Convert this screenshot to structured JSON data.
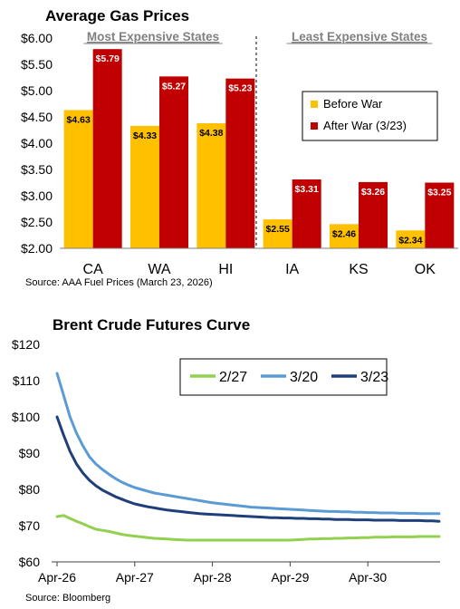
{
  "chart_data": [
    {
      "type": "bar",
      "title": "Average Gas Prices",
      "group_labels": [
        "Most Expensive States",
        "Least Expensive States"
      ],
      "categories": [
        "CA",
        "WA",
        "HI",
        "IA",
        "KS",
        "OK"
      ],
      "ylim": [
        2.0,
        6.0
      ],
      "yticks": [
        "$2.00",
        "$2.50",
        "$3.00",
        "$3.50",
        "$4.00",
        "$4.50",
        "$5.00",
        "$5.50",
        "$6.00"
      ],
      "series": [
        {
          "name": "Before War",
          "color": "#FFC000",
          "values": [
            4.63,
            4.33,
            4.38,
            2.55,
            2.46,
            2.34
          ],
          "labels": [
            "$4.63",
            "$4.33",
            "$4.38",
            "$2.55",
            "$2.46",
            "$2.34"
          ]
        },
        {
          "name": "After War (3/23)",
          "color": "#C00000",
          "values": [
            5.79,
            5.27,
            5.23,
            3.31,
            3.26,
            3.25
          ],
          "labels": [
            "$5.79",
            "$5.27",
            "$5.23",
            "$3.31",
            "$3.26",
            "$3.25"
          ]
        }
      ],
      "legend_position": "right",
      "source": "Source: AAA Fuel Prices (March 23, 2026)"
    },
    {
      "type": "line",
      "title": "Brent Crude Futures Curve",
      "ylim": [
        60,
        120
      ],
      "yticks": [
        "$60",
        "$70",
        "$80",
        "$90",
        "$100",
        "$110",
        "$120"
      ],
      "xticks": [
        "Apr-26",
        "Apr-27",
        "Apr-28",
        "Apr-29",
        "Apr-30"
      ],
      "x_months": [
        0,
        1,
        2,
        3,
        4,
        5,
        6,
        7,
        8,
        9,
        10,
        11,
        12,
        13,
        14,
        15,
        16,
        17,
        18,
        19,
        20,
        21,
        22,
        23,
        24,
        25,
        26,
        27,
        28,
        29,
        30,
        31,
        32,
        33,
        34,
        35,
        36,
        37,
        38,
        39,
        40,
        41,
        42,
        43,
        44,
        45,
        46,
        47,
        48,
        49,
        50,
        51,
        52,
        53,
        54,
        55,
        56,
        57,
        58,
        59
      ],
      "series": [
        {
          "name": "2/27",
          "color": "#92D050",
          "values": [
            72.5,
            72.8,
            72.0,
            71.2,
            70.5,
            69.7,
            69.0,
            68.7,
            68.4,
            68.0,
            67.6,
            67.3,
            67.1,
            66.9,
            66.7,
            66.5,
            66.4,
            66.3,
            66.2,
            66.1,
            66.0,
            66.0,
            66.0,
            66.0,
            66.0,
            66.0,
            66.0,
            66.0,
            66.0,
            66.0,
            66.0,
            66.0,
            66.0,
            66.0,
            66.0,
            66.0,
            66.0,
            66.1,
            66.2,
            66.3,
            66.3,
            66.4,
            66.4,
            66.5,
            66.5,
            66.6,
            66.6,
            66.7,
            66.7,
            66.8,
            66.8,
            66.8,
            66.9,
            66.9,
            66.9,
            66.9,
            67.0,
            67.0,
            67.0,
            67.0
          ]
        },
        {
          "name": "3/20",
          "color": "#5B9BD5",
          "values": [
            112.0,
            106.0,
            100.0,
            95.5,
            92.0,
            89.0,
            87.0,
            85.5,
            84.2,
            83.0,
            82.0,
            81.2,
            80.5,
            80.0,
            79.5,
            79.0,
            78.7,
            78.4,
            78.1,
            77.8,
            77.5,
            77.2,
            76.9,
            76.6,
            76.3,
            76.1,
            75.9,
            75.7,
            75.5,
            75.3,
            75.1,
            75.0,
            74.9,
            74.8,
            74.7,
            74.6,
            74.5,
            74.4,
            74.3,
            74.2,
            74.1,
            74.0,
            73.9,
            73.9,
            73.8,
            73.8,
            73.7,
            73.7,
            73.6,
            73.6,
            73.5,
            73.5,
            73.5,
            73.4,
            73.4,
            73.4,
            73.3,
            73.3,
            73.3,
            73.3
          ]
        },
        {
          "name": "3/23",
          "color": "#1F3F7A",
          "values": [
            100.0,
            95.0,
            90.5,
            87.0,
            84.5,
            82.5,
            81.0,
            79.8,
            78.9,
            78.0,
            77.3,
            76.6,
            76.0,
            75.6,
            75.2,
            74.9,
            74.6,
            74.3,
            74.1,
            73.9,
            73.7,
            73.5,
            73.3,
            73.2,
            73.1,
            73.0,
            72.9,
            72.8,
            72.7,
            72.6,
            72.5,
            72.4,
            72.3,
            72.2,
            72.2,
            72.1,
            72.1,
            72.0,
            72.0,
            71.9,
            71.9,
            71.8,
            71.8,
            71.7,
            71.7,
            71.7,
            71.6,
            71.6,
            71.6,
            71.5,
            71.5,
            71.5,
            71.5,
            71.4,
            71.4,
            71.4,
            71.4,
            71.3,
            71.3,
            71.2
          ]
        }
      ],
      "legend_position": "top-right",
      "source": "Source: Bloomberg"
    }
  ]
}
